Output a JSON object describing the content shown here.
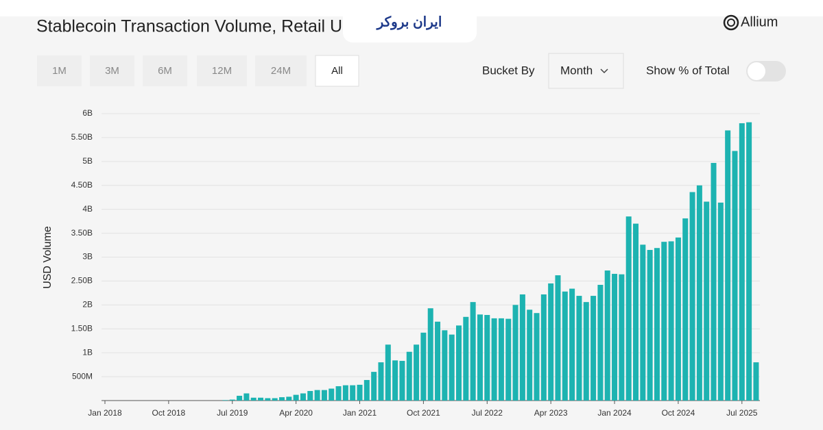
{
  "ui": {
    "brand": "Allium",
    "watermark": "ایران بروکر",
    "range_buttons": [
      "1M",
      "3M",
      "6M",
      "12M",
      "24M",
      "All"
    ],
    "active_button": 5,
    "bucket_label": "Bucket By",
    "bucket_value": "Month",
    "toggle_label": "Show % of Total",
    "toggle_on": false
  },
  "chart_data": {
    "type": "bar",
    "title": "Stablecoin Transaction Volume, Retail User Adjusted",
    "ylabel": "USD Volume",
    "color": "#1db3b1",
    "grid": true,
    "categories": [
      "Jan 2018",
      null,
      null,
      null,
      null,
      null,
      null,
      null,
      null,
      "Oct 2018",
      null,
      null,
      null,
      null,
      null,
      null,
      null,
      null,
      "Jul 2019",
      null,
      null,
      null,
      null,
      null,
      null,
      null,
      null,
      "Apr 2020",
      null,
      null,
      null,
      null,
      null,
      null,
      null,
      null,
      "Jan 2021",
      null,
      null,
      null,
      null,
      null,
      null,
      null,
      null,
      "Oct 2021",
      null,
      null,
      null,
      null,
      null,
      null,
      null,
      null,
      "Jul 2022",
      null,
      null,
      null,
      null,
      null,
      null,
      null,
      null,
      "Apr 2023",
      null,
      null,
      null,
      null,
      null,
      null,
      null,
      null,
      "Jan 2024",
      null,
      null,
      null,
      null,
      null,
      null,
      null,
      null,
      "Oct 2024",
      null,
      null,
      null,
      null,
      null,
      null,
      null,
      null,
      "Jul 2025",
      null,
      null
    ],
    "values": [
      0,
      0,
      0,
      0,
      0,
      0,
      0,
      0,
      0,
      0,
      0,
      0,
      0,
      0,
      0,
      0,
      0,
      0.01,
      0.02,
      0.1,
      0.15,
      0.06,
      0.06,
      0.05,
      0.05,
      0.07,
      0.08,
      0.12,
      0.15,
      0.2,
      0.22,
      0.22,
      0.25,
      0.3,
      0.32,
      0.32,
      0.33,
      0.43,
      0.6,
      0.8,
      1.17,
      0.84,
      0.83,
      1.02,
      1.17,
      1.42,
      1.93,
      1.65,
      1.47,
      1.38,
      1.57,
      1.75,
      2.06,
      1.8,
      1.79,
      1.72,
      1.72,
      1.71,
      2.0,
      2.22,
      1.9,
      1.83,
      2.22,
      2.45,
      2.62,
      2.28,
      2.34,
      2.19,
      2.06,
      2.19,
      2.42,
      2.72,
      2.65,
      2.64,
      3.85,
      3.7,
      3.26,
      3.15,
      3.19,
      3.32,
      3.33,
      3.41,
      3.81,
      4.36,
      4.5,
      4.16,
      4.97,
      4.14,
      5.65,
      5.22,
      5.8,
      5.82,
      0.8
    ],
    "ylim": [
      0,
      6
    ],
    "yticks": [
      {
        "value": 0.5,
        "label": "500M"
      },
      {
        "value": 1,
        "label": "1B"
      },
      {
        "value": 1.5,
        "label": "1.50B"
      },
      {
        "value": 2,
        "label": "2B"
      },
      {
        "value": 2.5,
        "label": "2.50B"
      },
      {
        "value": 3,
        "label": "3B"
      },
      {
        "value": 3.5,
        "label": "3.50B"
      },
      {
        "value": 4,
        "label": "4B"
      },
      {
        "value": 4.5,
        "label": "4.50B"
      },
      {
        "value": 5,
        "label": "5B"
      },
      {
        "value": 5.5,
        "label": "5.50B"
      },
      {
        "value": 6,
        "label": "6B"
      }
    ]
  }
}
